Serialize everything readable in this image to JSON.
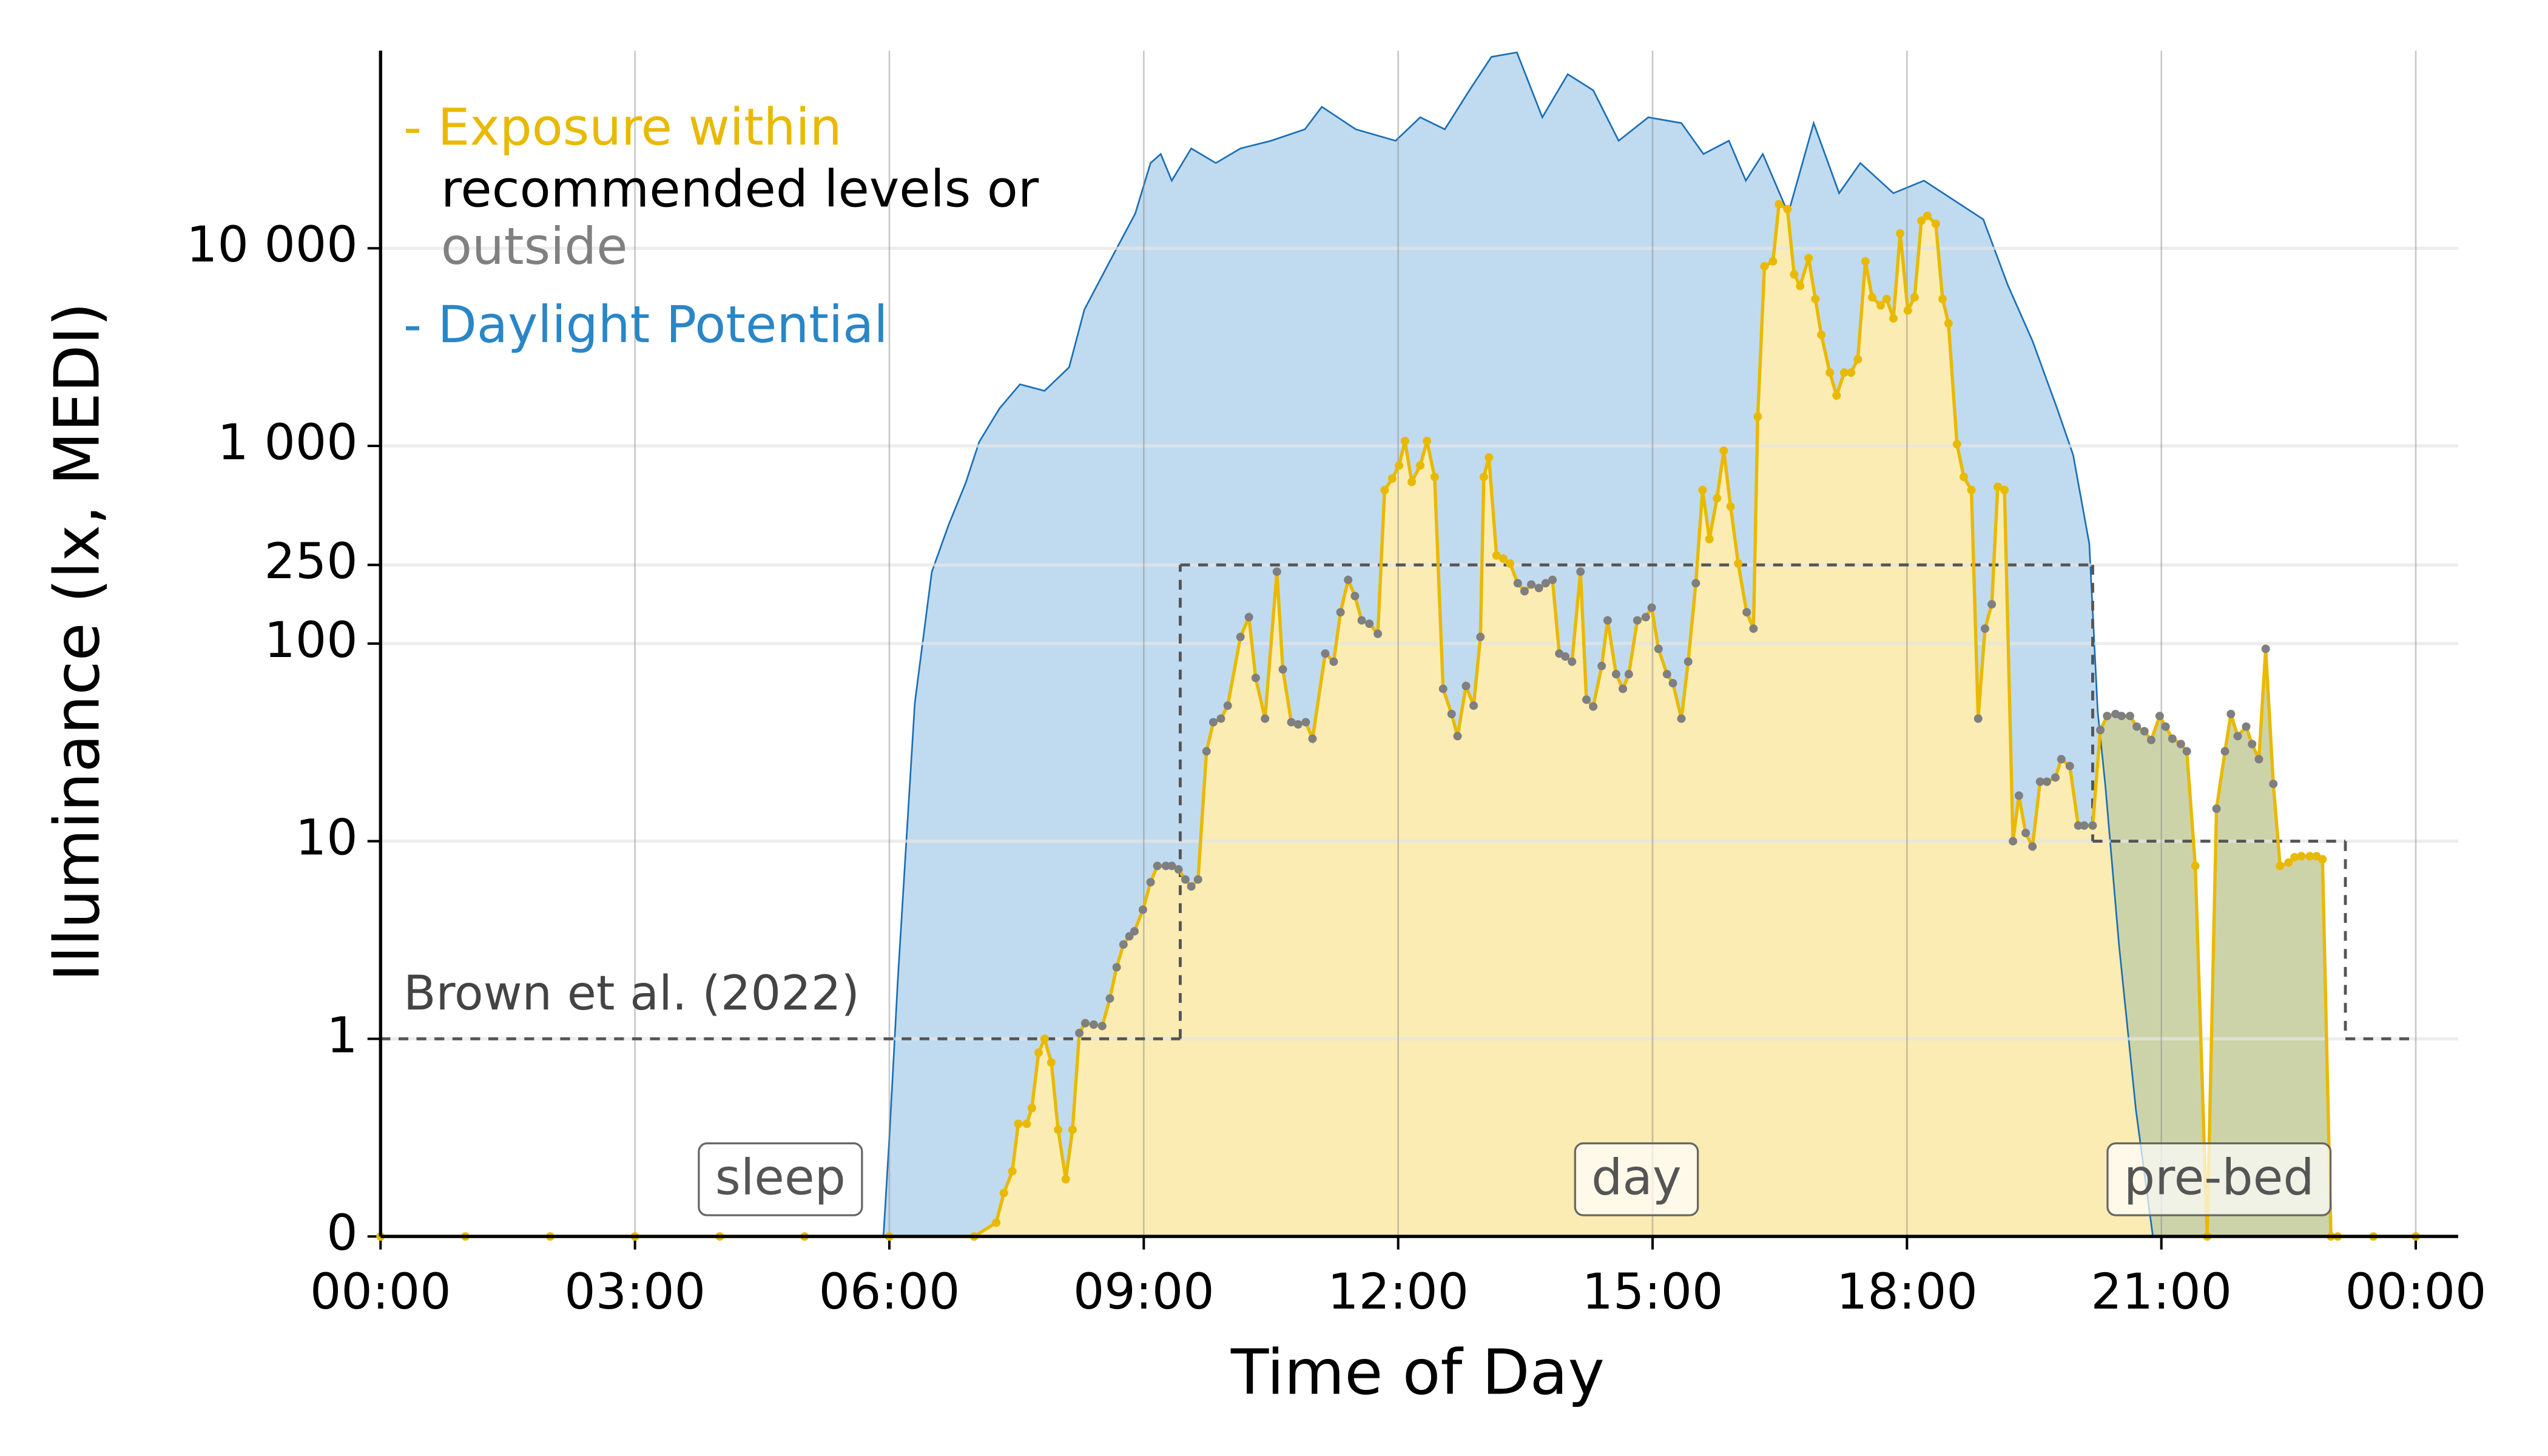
{
  "chart_data": {
    "type": "line",
    "xlabel": "Time of Day",
    "ylabel": "Illuminance (lx, MEDI)",
    "yscale": "symlog",
    "xlim": [
      0,
      24.5
    ],
    "ylim": [
      0,
      100000
    ],
    "xticks": [
      {
        "value": 0,
        "label": "00:00"
      },
      {
        "value": 3,
        "label": "03:00"
      },
      {
        "value": 6,
        "label": "06:00"
      },
      {
        "value": 9,
        "label": "09:00"
      },
      {
        "value": 12,
        "label": "12:00"
      },
      {
        "value": 15,
        "label": "15:00"
      },
      {
        "value": 18,
        "label": "18:00"
      },
      {
        "value": 21,
        "label": "21:00"
      },
      {
        "value": 24,
        "label": "00:00"
      }
    ],
    "yticks": [
      0,
      1,
      10,
      100,
      250,
      {
        "value": 1000,
        "label": "1 000"
      },
      {
        "value": 10000,
        "label": "10 000"
      }
    ],
    "grid": true,
    "legend": [
      {
        "text": "- Exposure within",
        "color": "#e9b900"
      },
      {
        "text": "recommended levels or",
        "color": "#000000"
      },
      {
        "text": "outside",
        "color": "#808080"
      },
      {
        "text": "- Daylight Potential",
        "color": "#2a86c6"
      }
    ],
    "annotation": "Brown et al. (2022)",
    "states": [
      {
        "label": "sleep",
        "start": 0,
        "end": 9.43,
        "threshold": 1,
        "limit": "max"
      },
      {
        "label": "day",
        "start": 9.43,
        "end": 20.19,
        "threshold": 250,
        "limit": "min"
      },
      {
        "label": "pre-bed",
        "start": 20.19,
        "end": 23.17,
        "threshold": 10,
        "limit": "max"
      },
      {
        "label": null,
        "start": 23.17,
        "end": 24,
        "threshold": 1,
        "limit": "max"
      }
    ],
    "point_colors": {
      "within": "#e9b900",
      "outside": "#7f7f7f"
    },
    "overlap_color": "#cdd3a9",
    "series": [
      {
        "color": "#1a6fb5",
        "fill": "#c0dbf0",
        "x": [
          0,
          5.93,
          6.0,
          6.1,
          6.3,
          6.5,
          6.7,
          6.9,
          7.06,
          7.3,
          7.54,
          7.83,
          8.12,
          8.3,
          8.6,
          8.9,
          9.08,
          9.2,
          9.33,
          9.56,
          9.85,
          10.14,
          10.5,
          10.9,
          11.1,
          11.5,
          11.97,
          12.26,
          12.55,
          12.84,
          13.1,
          13.4,
          13.7,
          14.0,
          14.3,
          14.6,
          14.95,
          15.34,
          15.6,
          15.9,
          16.1,
          16.3,
          16.6,
          16.9,
          17.2,
          17.45,
          17.84,
          18.2,
          18.6,
          18.9,
          19.19,
          19.48,
          19.77,
          19.96,
          20.15,
          20.25,
          20.34,
          20.5,
          20.7,
          20.9,
          24
        ],
        "values": [
          0,
          0,
          0.5,
          2,
          50,
          230,
          400,
          650,
          1050,
          1550,
          2050,
          1900,
          2500,
          4900,
          8600,
          15000,
          27000,
          30000,
          22000,
          32000,
          27000,
          32000,
          35000,
          40000,
          52000,
          40000,
          35000,
          46000,
          40000,
          63000,
          93000,
          98000,
          46000,
          76000,
          63000,
          35000,
          46000,
          43000,
          30000,
          35000,
          22000,
          30000,
          15000,
          43000,
          19000,
          27000,
          19000,
          22000,
          17000,
          14000,
          6500,
          3400,
          1550,
          900,
          320,
          45,
          19,
          3,
          0.64,
          0,
          0
        ]
      },
      {
        "color": "#e9b900",
        "fill": "#faecb2",
        "x": [
          0,
          1,
          2,
          3,
          4,
          5,
          6,
          7,
          7.26,
          7.35,
          7.45,
          7.52,
          7.62,
          7.68,
          7.76,
          7.83,
          7.91,
          7.99,
          8.08,
          8.16,
          8.24,
          8.31,
          8.41,
          8.51,
          8.6,
          8.68,
          8.76,
          8.83,
          8.89,
          8.99,
          9.08,
          9.16,
          9.26,
          9.33,
          9.41,
          9.49,
          9.56,
          9.64,
          9.74,
          9.82,
          9.91,
          9.99,
          10.14,
          10.24,
          10.32,
          10.43,
          10.57,
          10.64,
          10.74,
          10.82,
          10.91,
          10.99,
          11.14,
          11.24,
          11.32,
          11.41,
          11.49,
          11.57,
          11.66,
          11.76,
          11.84,
          11.93,
          12.01,
          12.08,
          12.16,
          12.26,
          12.34,
          12.43,
          12.53,
          12.63,
          12.7,
          12.8,
          12.89,
          12.97,
          13.01,
          13.07,
          13.16,
          13.24,
          13.32,
          13.41,
          13.49,
          13.57,
          13.66,
          13.74,
          13.82,
          13.9,
          13.97,
          14.05,
          14.15,
          14.22,
          14.3,
          14.4,
          14.47,
          14.57,
          14.65,
          14.72,
          14.82,
          14.92,
          14.99,
          15.07,
          15.17,
          15.24,
          15.34,
          15.42,
          15.51,
          15.59,
          15.67,
          15.76,
          15.84,
          15.92,
          16.01,
          16.11,
          16.19,
          16.24,
          16.32,
          16.42,
          16.49,
          16.59,
          16.67,
          16.74,
          16.84,
          16.92,
          16.99,
          17.09,
          17.17,
          17.26,
          17.34,
          17.42,
          17.51,
          17.59,
          17.69,
          17.76,
          17.84,
          17.92,
          18.01,
          18.09,
          18.17,
          18.24,
          18.34,
          18.42,
          18.49,
          18.59,
          18.67,
          18.76,
          18.84,
          18.92,
          19.0,
          19.07,
          19.15,
          19.25,
          19.32,
          19.4,
          19.48,
          19.57,
          19.65,
          19.75,
          19.82,
          19.92,
          20.02,
          20.09,
          20.19,
          20.28,
          20.36,
          20.46,
          20.53,
          20.63,
          20.71,
          20.8,
          20.88,
          20.98,
          21.05,
          21.13,
          21.23,
          21.3,
          21.4,
          21.54,
          21.65,
          21.75,
          21.82,
          21.9,
          22.0,
          22.07,
          22.15,
          22.23,
          22.32,
          22.4,
          22.5,
          22.57,
          22.65,
          22.75,
          22.83,
          22.9,
          23.0,
          23.08,
          23.5,
          24
        ],
        "values": [
          0,
          0,
          0,
          0,
          0,
          0,
          0,
          0,
          0.07,
          0.22,
          0.33,
          0.57,
          0.57,
          0.65,
          0.93,
          1,
          0.88,
          0.54,
          0.29,
          0.54,
          1.07,
          1.2,
          1.18,
          1.16,
          1.6,
          2.3,
          3,
          3.3,
          3.5,
          4.5,
          6.2,
          7.5,
          7.5,
          7.5,
          7.2,
          6.4,
          5.9,
          6.4,
          28.5,
          40,
          41.7,
          48.5,
          108,
          136,
          67,
          41.7,
          231,
          74,
          40,
          39,
          40,
          33,
          89,
          81,
          144,
          210,
          174,
          131,
          126,
          112,
          598,
          684,
          796,
          1059,
          658,
          796,
          1059,
          697,
          59,
          44,
          34,
          61,
          48.5,
          108,
          697,
          875,
          279,
          269,
          254,
          202,
          184,
          199,
          191,
          202,
          210,
          89,
          86,
          81,
          231,
          52,
          48,
          77,
          131,
          70,
          59,
          70,
          131,
          136,
          152,
          94,
          70,
          63,
          41.7,
          81,
          202,
          598,
          338,
          544,
          945,
          494,
          254,
          144,
          119,
          1408,
          8110,
          8590,
          16700,
          15800,
          7380,
          6450,
          8920,
          5540,
          3650,
          2350,
          1800,
          2350,
          2350,
          2740,
          8590,
          5650,
          5140,
          5540,
          4420,
          11900,
          4850,
          5650,
          13800,
          14600,
          13300,
          5540,
          4170,
          1020,
          697,
          598,
          41.7,
          119,
          158,
          621,
          598,
          10,
          17,
          11,
          9.4,
          20,
          20,
          21,
          26,
          24,
          12,
          12,
          12,
          36.5,
          43,
          44,
          43,
          43,
          38,
          36,
          32.5,
          43,
          38,
          33,
          31,
          28.5,
          7.5,
          0,
          14.6,
          28.5,
          44,
          34,
          38,
          31,
          26,
          94,
          19.5,
          7.5,
          7.8,
          8.3,
          8.4,
          8.4,
          8.4,
          8.1,
          0,
          0,
          0,
          0
        ]
      }
    ]
  }
}
